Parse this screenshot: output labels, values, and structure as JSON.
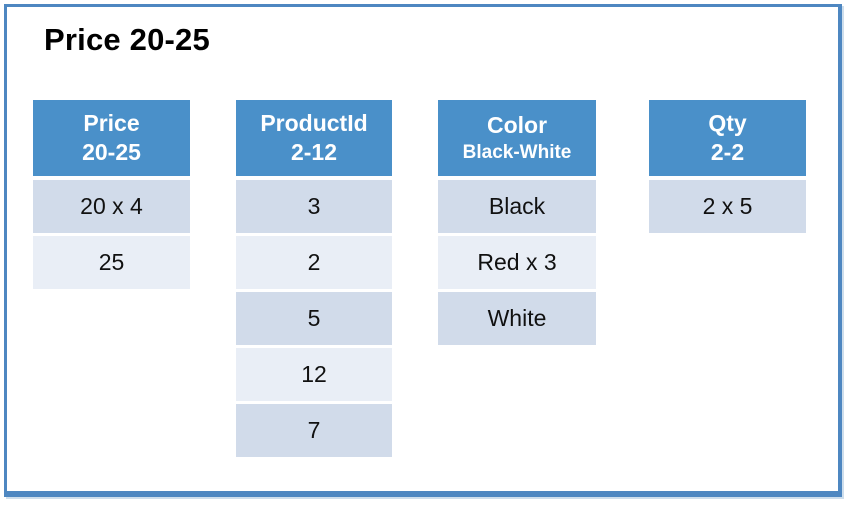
{
  "title": "Price 20-25",
  "colors": {
    "header_blue": "#4A90C9",
    "row_dark": "#D1DBEA",
    "row_light": "#E9EEF6",
    "frame_border": "#4E87C1",
    "title_text": "#000000",
    "header_text": "#FFFFFF",
    "cell_text": "#111111"
  },
  "tables": [
    {
      "id": "price",
      "header_line1": "Price",
      "header_line2": "20-25",
      "header_line2_small": false,
      "rows": [
        "20 x 4",
        "25"
      ]
    },
    {
      "id": "productid",
      "header_line1": "ProductId",
      "header_line2": "2-12",
      "header_line2_small": false,
      "rows": [
        "3",
        "2",
        "5",
        "12",
        "7"
      ]
    },
    {
      "id": "color",
      "header_line1": "Color",
      "header_line2": "Black-White",
      "header_line2_small": true,
      "rows": [
        "Black",
        "Red x 3",
        "White"
      ]
    },
    {
      "id": "qty",
      "header_line1": "Qty",
      "header_line2": "2-2",
      "header_line2_small": false,
      "rows": [
        "2 x 5"
      ]
    }
  ]
}
